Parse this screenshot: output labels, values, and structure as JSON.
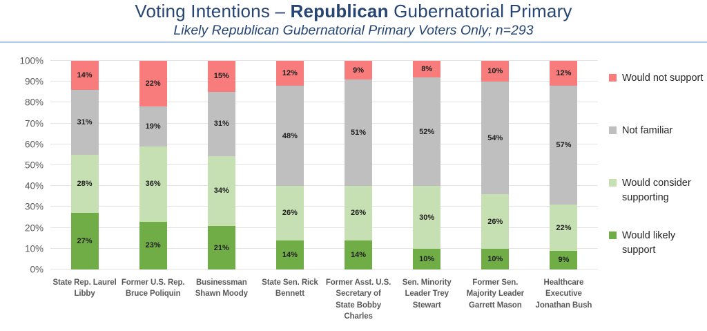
{
  "title": {
    "prefix": "Voting Intentions – ",
    "highlight": "Republican",
    "suffix": " Gubernatorial Primary"
  },
  "subtitle": "Likely Republican Gubernatorial Primary Voters Only; n=293",
  "colors": {
    "title_navy": "#274572",
    "divider_blue": "#aecbea",
    "axis_text_gray": "#595959",
    "gridline_gray": "#e4e2e2",
    "would_not_support_red": "#F87C7C",
    "not_familiar_gray": "#BFBFBF",
    "would_consider_green": "#C6E0B4",
    "would_likely_green": "#70AD47"
  },
  "chart_data": {
    "type": "bar",
    "stacked": true,
    "orientation": "vertical",
    "grid": true,
    "ylim": [
      0,
      100
    ],
    "y_ticks": [
      "0%",
      "10%",
      "20%",
      "30%",
      "40%",
      "50%",
      "60%",
      "70%",
      "80%",
      "90%",
      "100%"
    ],
    "data_label_format": "{v}%",
    "categories": [
      "State Rep. Laurel Libby",
      "Former U.S. Rep. Bruce Poliquin",
      "Businessman Shawn Moody",
      "State Sen. Rick Bennett",
      "Former Asst. U.S. Secretary of State Bobby Charles",
      "Sen. Minority Leader Trey Stewart",
      "Former Sen. Majority Leader Garrett Mason",
      "Healthcare Executive Jonathan Bush"
    ],
    "series": [
      {
        "name": "Would likely support",
        "color": "#70AD47",
        "values": [
          27,
          23,
          21,
          14,
          14,
          10,
          10,
          9
        ]
      },
      {
        "name": "Would consider supporting",
        "color": "#C6E0B4",
        "values": [
          28,
          36,
          34,
          26,
          26,
          30,
          26,
          22
        ]
      },
      {
        "name": "Not familiar",
        "color": "#BFBFBF",
        "values": [
          31,
          19,
          31,
          48,
          51,
          52,
          54,
          57
        ]
      },
      {
        "name": "Would not support",
        "color": "#F87C7C",
        "values": [
          14,
          22,
          15,
          12,
          9,
          8,
          10,
          12
        ]
      }
    ],
    "legend_position": "right",
    "legend": [
      {
        "label": "Would not support",
        "color": "#F87C7C"
      },
      {
        "label": "Not familiar",
        "color": "#BFBFBF"
      },
      {
        "label": "Would consider supporting",
        "color": "#C6E0B4"
      },
      {
        "label": "Would likely support",
        "color": "#70AD47"
      }
    ]
  }
}
